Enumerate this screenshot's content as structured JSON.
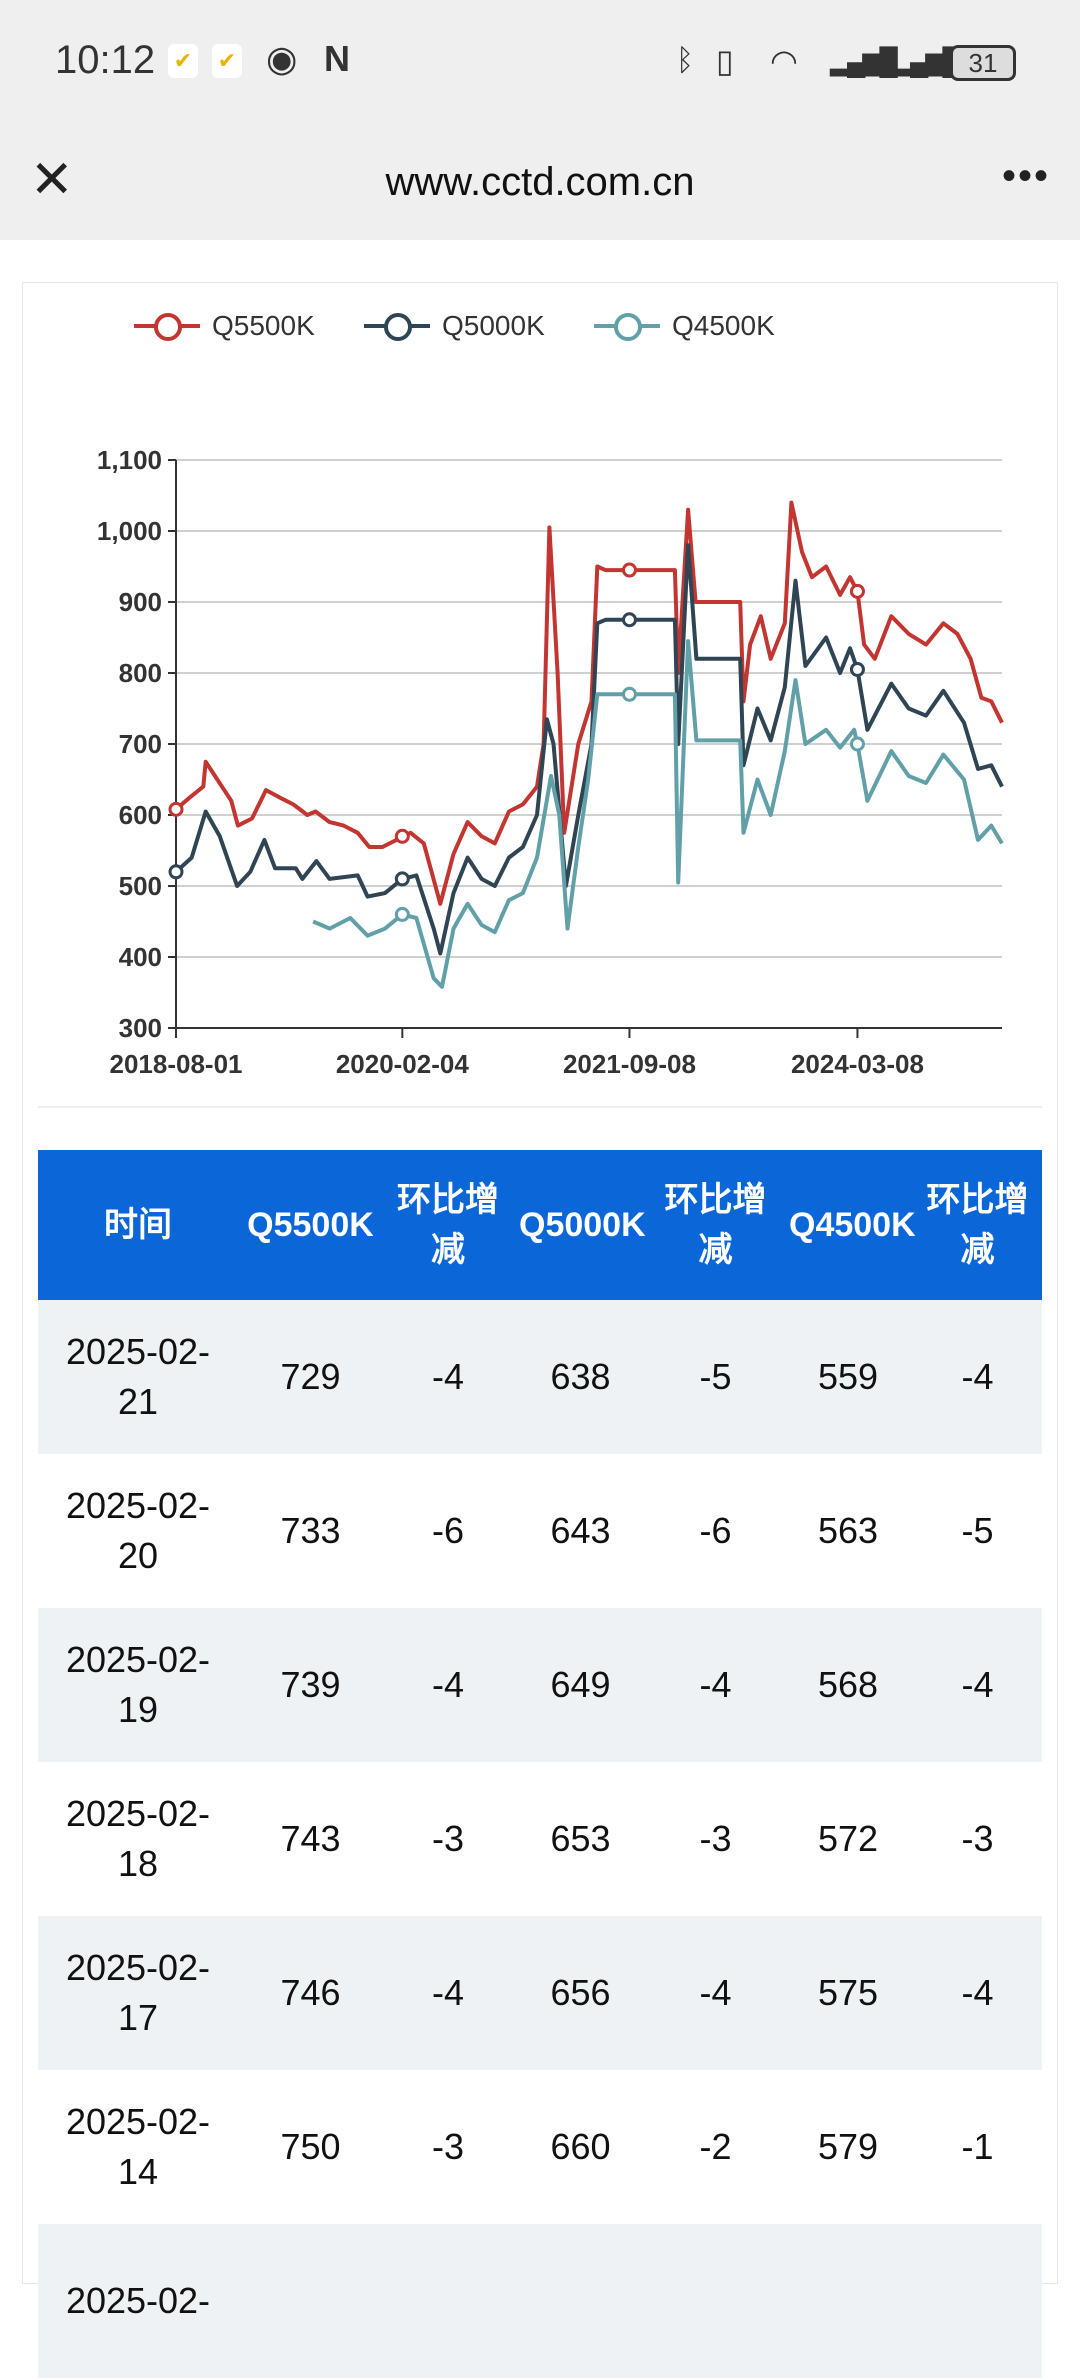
{
  "status_bar": {
    "time": "10:12",
    "battery": "31",
    "icons": [
      "task-app-icon",
      "task-app-icon",
      "eye-icon",
      "nfc-icon",
      "bluetooth-icon",
      "vibrate-icon",
      "wifi-icon",
      "signal-icon",
      "signal-icon",
      "battery-icon"
    ]
  },
  "nav": {
    "title": "www.cctd.com.cn",
    "close": "✕",
    "more": "•••"
  },
  "colors": {
    "Q5500K": "#c23531",
    "Q5000K": "#2f4554",
    "Q4500K": "#61a0a8",
    "header_bg": "#0b66d8"
  },
  "chart_data": {
    "type": "line",
    "title": "",
    "xlabel": "",
    "ylabel": "",
    "ylim": [
      300,
      1100
    ],
    "y_ticks": [
      "300",
      "400",
      "500",
      "600",
      "700",
      "800",
      "900",
      "1,000",
      "1,100"
    ],
    "x_ticks": [
      {
        "label": "2018-08-01",
        "index": 0
      },
      {
        "label": "2020-02-04",
        "index": 274
      },
      {
        "label": "2021-09-08",
        "index": 549
      },
      {
        "label": "2024-03-08",
        "index": 825
      }
    ],
    "x_range": [
      0,
      1000
    ],
    "grid": true,
    "legend": "top-left",
    "series": [
      {
        "name": "Q5500K",
        "color": "#c23531",
        "points": [
          [
            0,
            608
          ],
          [
            17,
            625
          ],
          [
            33,
            640
          ],
          [
            36,
            675
          ],
          [
            50,
            650
          ],
          [
            67,
            620
          ],
          [
            75,
            585
          ],
          [
            92,
            595
          ],
          [
            109,
            635
          ],
          [
            125,
            625
          ],
          [
            142,
            615
          ],
          [
            159,
            600
          ],
          [
            169,
            605
          ],
          [
            186,
            590
          ],
          [
            203,
            585
          ],
          [
            220,
            575
          ],
          [
            234,
            555
          ],
          [
            250,
            555
          ],
          [
            267,
            565
          ],
          [
            274,
            570
          ],
          [
            284,
            575
          ],
          [
            300,
            560
          ],
          [
            320,
            475
          ],
          [
            336,
            545
          ],
          [
            353,
            590
          ],
          [
            370,
            570
          ],
          [
            386,
            560
          ],
          [
            403,
            605
          ],
          [
            420,
            615
          ],
          [
            437,
            640
          ],
          [
            445,
            700
          ],
          [
            452,
            1005
          ],
          [
            462,
            800
          ],
          [
            470,
            575
          ],
          [
            487,
            700
          ],
          [
            503,
            760
          ],
          [
            510,
            950
          ],
          [
            520,
            945
          ],
          [
            549,
            945
          ],
          [
            604,
            945
          ],
          [
            608,
            800
          ],
          [
            620,
            1030
          ],
          [
            629,
            900
          ],
          [
            683,
            900
          ],
          [
            687,
            760
          ],
          [
            695,
            840
          ],
          [
            708,
            880
          ],
          [
            720,
            820
          ],
          [
            737,
            870
          ],
          [
            745,
            1040
          ],
          [
            758,
            970
          ],
          [
            770,
            935
          ],
          [
            787,
            950
          ],
          [
            804,
            910
          ],
          [
            816,
            935
          ],
          [
            825,
            915
          ],
          [
            833,
            840
          ],
          [
            846,
            820
          ],
          [
            866,
            880
          ],
          [
            887,
            855
          ],
          [
            908,
            840
          ],
          [
            929,
            870
          ],
          [
            946,
            855
          ],
          [
            962,
            820
          ],
          [
            975,
            765
          ],
          [
            987,
            760
          ],
          [
            1000,
            730
          ]
        ]
      },
      {
        "name": "Q5000K",
        "color": "#2f4554",
        "points": [
          [
            0,
            520
          ],
          [
            19,
            540
          ],
          [
            36,
            605
          ],
          [
            53,
            570
          ],
          [
            74,
            500
          ],
          [
            90,
            520
          ],
          [
            107,
            565
          ],
          [
            120,
            525
          ],
          [
            145,
            525
          ],
          [
            153,
            510
          ],
          [
            170,
            535
          ],
          [
            186,
            510
          ],
          [
            220,
            515
          ],
          [
            232,
            485
          ],
          [
            253,
            490
          ],
          [
            274,
            510
          ],
          [
            291,
            515
          ],
          [
            312,
            440
          ],
          [
            320,
            405
          ],
          [
            336,
            490
          ],
          [
            353,
            540
          ],
          [
            370,
            510
          ],
          [
            386,
            500
          ],
          [
            403,
            540
          ],
          [
            420,
            555
          ],
          [
            437,
            600
          ],
          [
            449,
            735
          ],
          [
            457,
            700
          ],
          [
            472,
            500
          ],
          [
            487,
            600
          ],
          [
            503,
            700
          ],
          [
            510,
            870
          ],
          [
            520,
            875
          ],
          [
            549,
            875
          ],
          [
            604,
            875
          ],
          [
            608,
            700
          ],
          [
            620,
            980
          ],
          [
            630,
            820
          ],
          [
            683,
            820
          ],
          [
            687,
            670
          ],
          [
            704,
            750
          ],
          [
            720,
            705
          ],
          [
            737,
            780
          ],
          [
            750,
            930
          ],
          [
            762,
            810
          ],
          [
            787,
            850
          ],
          [
            804,
            800
          ],
          [
            816,
            835
          ],
          [
            825,
            805
          ],
          [
            837,
            720
          ],
          [
            866,
            785
          ],
          [
            887,
            750
          ],
          [
            908,
            740
          ],
          [
            929,
            775
          ],
          [
            954,
            730
          ],
          [
            971,
            665
          ],
          [
            987,
            670
          ],
          [
            1000,
            640
          ]
        ]
      },
      {
        "name": "Q4500K",
        "color": "#61a0a8",
        "points": [
          [
            166,
            450
          ],
          [
            186,
            440
          ],
          [
            211,
            455
          ],
          [
            232,
            430
          ],
          [
            253,
            440
          ],
          [
            274,
            460
          ],
          [
            291,
            455
          ],
          [
            312,
            370
          ],
          [
            322,
            358
          ],
          [
            336,
            440
          ],
          [
            353,
            475
          ],
          [
            370,
            445
          ],
          [
            386,
            435
          ],
          [
            403,
            480
          ],
          [
            420,
            490
          ],
          [
            437,
            540
          ],
          [
            454,
            655
          ],
          [
            464,
            600
          ],
          [
            474,
            440
          ],
          [
            487,
            555
          ],
          [
            499,
            650
          ],
          [
            510,
            770
          ],
          [
            520,
            770
          ],
          [
            549,
            770
          ],
          [
            604,
            770
          ],
          [
            608,
            505
          ],
          [
            620,
            845
          ],
          [
            630,
            705
          ],
          [
            683,
            705
          ],
          [
            687,
            575
          ],
          [
            704,
            650
          ],
          [
            720,
            600
          ],
          [
            737,
            690
          ],
          [
            750,
            790
          ],
          [
            762,
            700
          ],
          [
            787,
            720
          ],
          [
            804,
            695
          ],
          [
            821,
            720
          ],
          [
            825,
            700
          ],
          [
            837,
            620
          ],
          [
            866,
            690
          ],
          [
            887,
            655
          ],
          [
            908,
            645
          ],
          [
            929,
            685
          ],
          [
            954,
            650
          ],
          [
            971,
            565
          ],
          [
            987,
            585
          ],
          [
            1000,
            560
          ]
        ]
      }
    ]
  },
  "table": {
    "headers": [
      "时间",
      "Q5500K",
      "环比增减",
      "Q5000K",
      "环比增减",
      "Q4500K",
      "环比增减"
    ],
    "rows": [
      [
        "2025-02-21",
        "729",
        "-4",
        "638",
        "-5",
        "559",
        "-4"
      ],
      [
        "2025-02-20",
        "733",
        "-6",
        "643",
        "-6",
        "563",
        "-5"
      ],
      [
        "2025-02-19",
        "739",
        "-4",
        "649",
        "-4",
        "568",
        "-4"
      ],
      [
        "2025-02-18",
        "743",
        "-3",
        "653",
        "-3",
        "572",
        "-3"
      ],
      [
        "2025-02-17",
        "746",
        "-4",
        "656",
        "-4",
        "575",
        "-4"
      ],
      [
        "2025-02-14",
        "750",
        "-3",
        "660",
        "-2",
        "579",
        "-1"
      ],
      [
        "2025-02-",
        "",
        "",
        "",
        "",
        "",
        ""
      ]
    ]
  }
}
